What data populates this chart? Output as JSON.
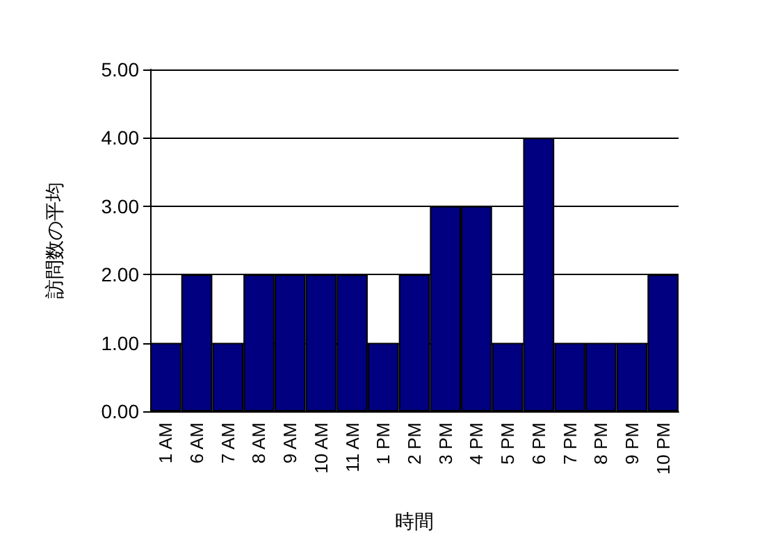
{
  "chart_data": {
    "type": "bar",
    "xlabel": "時間",
    "ylabel": "訪問数の平均",
    "categories": [
      "1 AM",
      "6 AM",
      "7 AM",
      "8 AM",
      "9 AM",
      "10 AM",
      "11 AM",
      "1 PM",
      "2 PM",
      "3 PM",
      "4 PM",
      "5 PM",
      "6 PM",
      "7 PM",
      "8 PM",
      "9 PM",
      "10 PM"
    ],
    "values": [
      1,
      2,
      1,
      2,
      2,
      2,
      2,
      1,
      2,
      3,
      3,
      1,
      4,
      1,
      1,
      1,
      2
    ],
    "color": "#000080",
    "ylim": [
      0,
      5
    ],
    "yticks": [
      {
        "value": 0,
        "label": "0.00"
      },
      {
        "value": 1,
        "label": "1.00"
      },
      {
        "value": 2,
        "label": "2.00"
      },
      {
        "value": 3,
        "label": "3.00"
      },
      {
        "value": 4,
        "label": "4.00"
      },
      {
        "value": 5,
        "label": "5.00"
      }
    ],
    "grid": "y"
  }
}
